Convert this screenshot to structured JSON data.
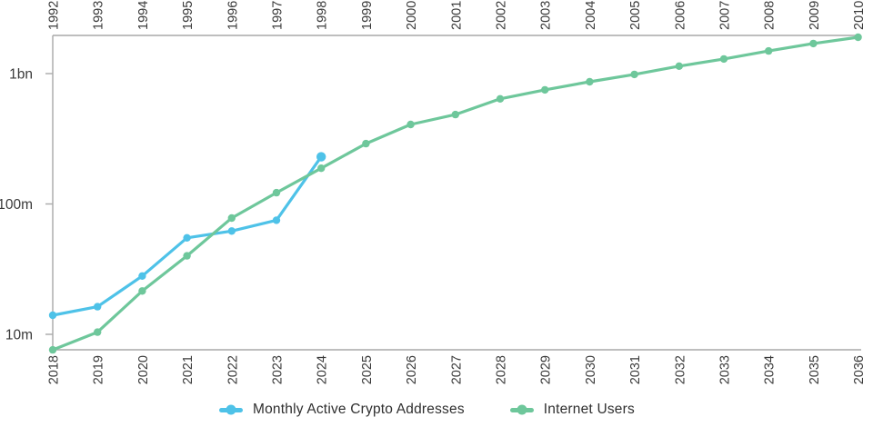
{
  "chart_data": {
    "type": "line",
    "title": "",
    "y_scale": "log",
    "unit": "millions of users/addresses",
    "grid": false,
    "legend_position": "bottom",
    "axis_color": "#A9A9A9",
    "label_color": "#3A3A3A",
    "y_ticks": [
      {
        "label": "10m",
        "value_millions": 10
      },
      {
        "label": "100m",
        "value_millions": 100
      },
      {
        "label": "1bn",
        "value_millions": 1000
      }
    ],
    "y_range_millions": [
      7.5,
      1960
    ],
    "top_axis_years": [
      "1992",
      "1993",
      "1994",
      "1995",
      "1996",
      "1997",
      "1998",
      "1999",
      "2000",
      "2001",
      "2002",
      "2003",
      "2004",
      "2005",
      "2006",
      "2007",
      "2008",
      "2009",
      "2010"
    ],
    "bottom_axis_years": [
      "2018",
      "2019",
      "2020",
      "2021",
      "2022",
      "2023",
      "2024",
      "2025",
      "2026",
      "2027",
      "2028",
      "2029",
      "2030",
      "2031",
      "2032",
      "2033",
      "2034",
      "2035",
      "2036"
    ],
    "series": [
      {
        "name": "Monthly Active Crypto Addresses",
        "color": "#4EC2E8",
        "marker": "circle",
        "axis": "bottom",
        "start_year_index": 0,
        "x_years": [
          "2018",
          "2019",
          "2020",
          "2021",
          "2022",
          "2023",
          "2024"
        ],
        "values_millions": [
          14,
          16.3,
          28,
          55,
          62,
          75,
          230
        ]
      },
      {
        "name": "Internet Users",
        "color": "#6EC79B",
        "marker": "circle",
        "axis": "top",
        "start_year_index": 0,
        "x_years": [
          "1992",
          "1993",
          "1994",
          "1995",
          "1996",
          "1997",
          "1998",
          "1999",
          "2000",
          "2001",
          "2002",
          "2003",
          "2004",
          "2005",
          "2006",
          "2007",
          "2008",
          "2009",
          "2010"
        ],
        "values_millions": [
          7.6,
          10.4,
          21.5,
          40,
          78,
          122,
          188,
          290,
          407,
          485,
          640,
          750,
          865,
          985,
          1140,
          1295,
          1490,
          1700,
          1900
        ]
      }
    ]
  }
}
